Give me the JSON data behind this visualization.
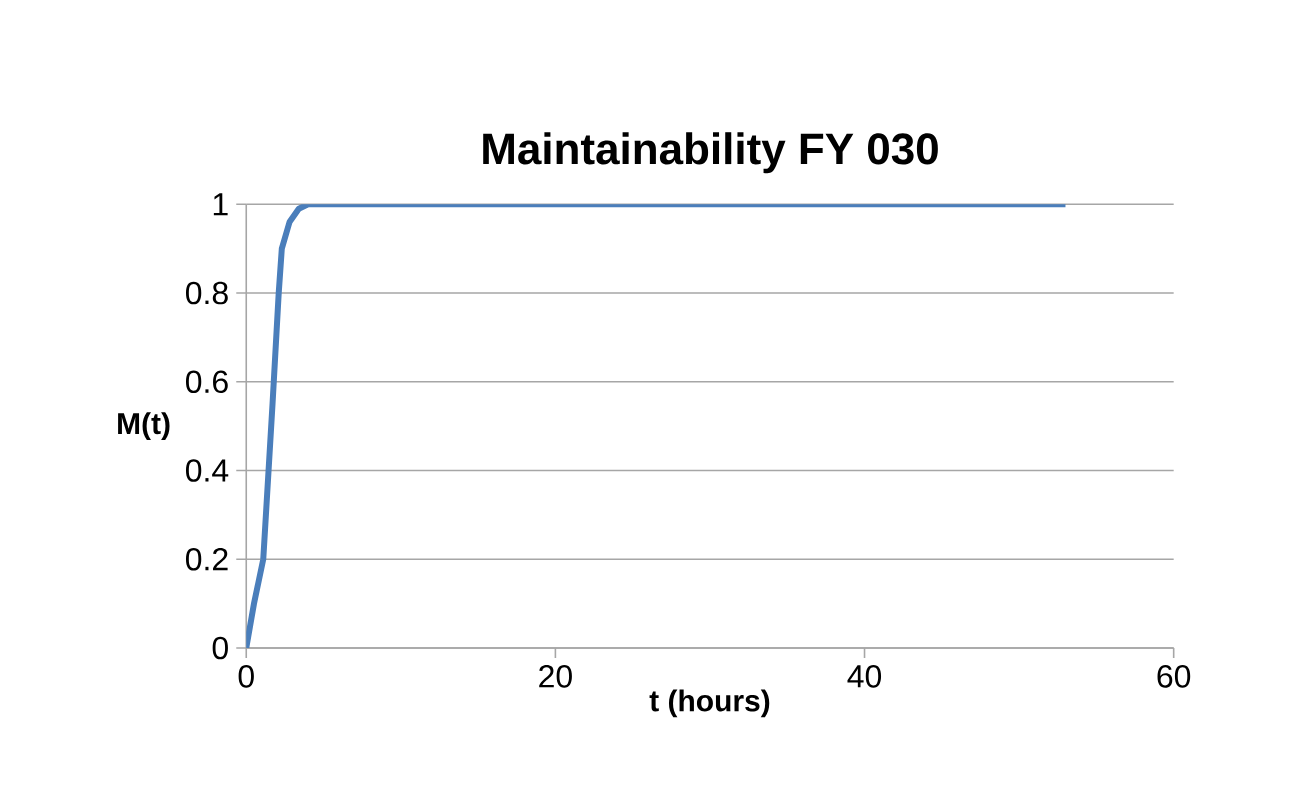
{
  "chart_data": {
    "type": "line",
    "title": "Maintainability FY 030",
    "xlabel": "t (hours)",
    "ylabel": "M(t)",
    "series": [
      {
        "color": "#4a7ebb",
        "x": [
          0,
          0.5,
          1.1,
          1.7,
          2.1,
          2.3,
          2.8,
          3.4,
          4,
          53
        ],
        "values": [
          0,
          0.1,
          0.2,
          0.55,
          0.8,
          0.9,
          0.96,
          0.99,
          1,
          1
        ]
      }
    ],
    "xlim": [
      0,
      60
    ],
    "xticks": [
      0,
      20,
      40,
      60
    ],
    "ylim": [
      0,
      1
    ],
    "yticks": [
      0,
      0.2,
      0.4,
      0.6,
      0.8,
      1
    ],
    "grid": "y",
    "marker": "none",
    "line_style": "solid"
  }
}
